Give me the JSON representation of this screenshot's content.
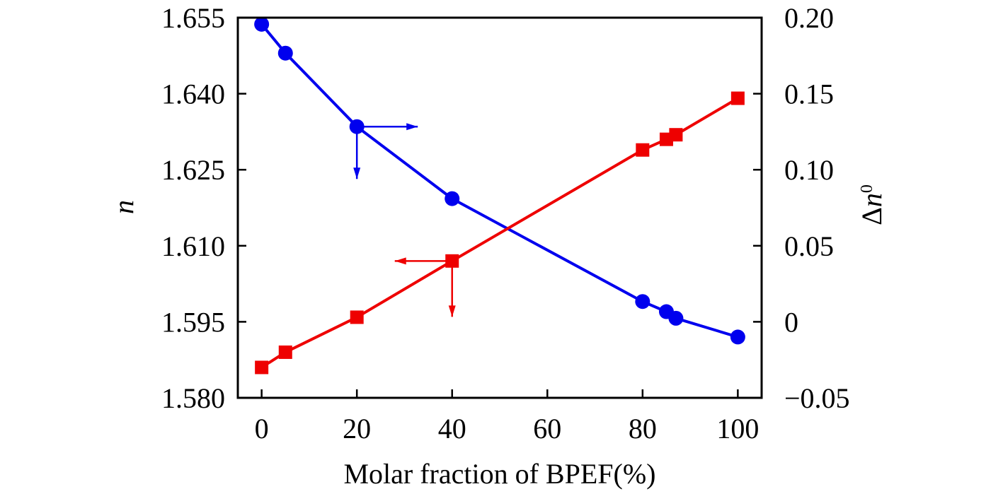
{
  "chart_data": {
    "type": "line",
    "title": "",
    "xlabel": "Molar fraction of BPEF(%)",
    "ylabel_left": "n",
    "ylabel_right": "Δn⁰",
    "xlim": [
      -5,
      105
    ],
    "ylim_left": [
      1.58,
      1.655
    ],
    "ylim_right": [
      -0.05,
      0.2
    ],
    "x_ticks": [
      0,
      20,
      40,
      60,
      80,
      100
    ],
    "x_tick_labels": [
      "0",
      "20",
      "40",
      "60",
      "80",
      "100"
    ],
    "y_left_ticks": [
      1.58,
      1.595,
      1.61,
      1.625,
      1.64,
      1.655
    ],
    "y_left_tick_labels": [
      "1.580",
      "1.595",
      "1.610",
      "1.625",
      "1.640",
      "1.655"
    ],
    "y_right_ticks": [
      -0.05,
      0,
      0.05,
      0.1,
      0.15,
      0.2
    ],
    "y_right_tick_labels": [
      "−0.05",
      "0",
      "0.05",
      "0.10",
      "0.15",
      "0.20"
    ],
    "grid": false,
    "series": [
      {
        "name": "n",
        "axis": "left",
        "color": "#0000ee",
        "marker": "circle",
        "x": [
          0,
          5,
          20,
          40,
          80,
          85,
          87,
          100
        ],
        "values": [
          1.6537,
          1.648,
          1.6335,
          1.6193,
          1.599,
          1.597,
          1.5957,
          1.592
        ],
        "arrow_directions": [
          "right",
          "down"
        ]
      },
      {
        "name": "Δn⁰",
        "axis": "right",
        "color": "#ee0000",
        "marker": "square",
        "x": [
          0,
          5,
          20,
          40,
          80,
          85,
          87,
          100
        ],
        "values": [
          -0.03,
          -0.02,
          0.003,
          0.04,
          0.113,
          0.12,
          0.123,
          0.147
        ],
        "arrow_directions": [
          "left",
          "down"
        ]
      }
    ]
  }
}
